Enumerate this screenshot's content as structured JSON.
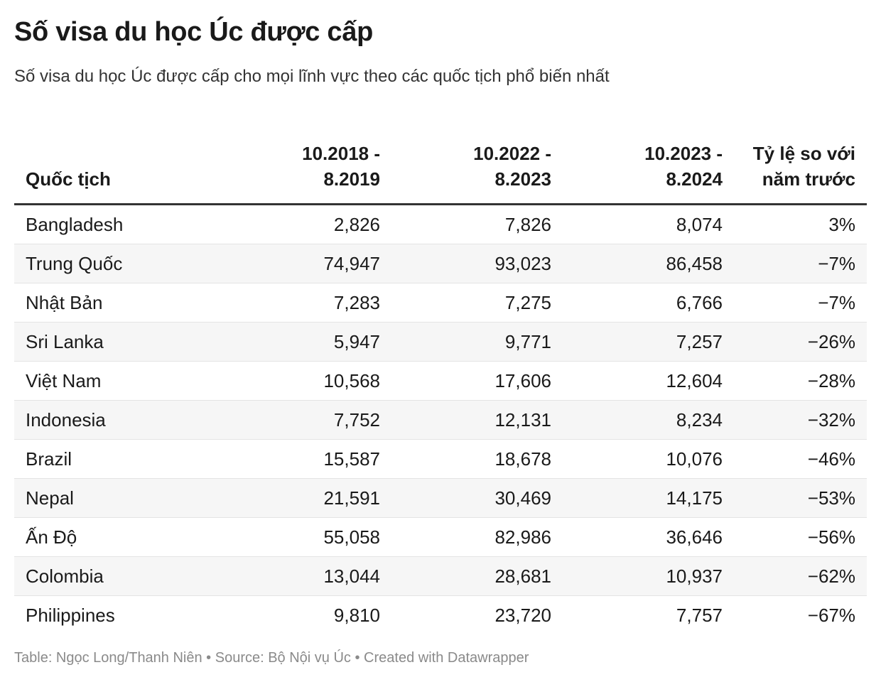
{
  "header": {
    "title": "Số visa du học Úc được cấp",
    "subtitle": "Số visa du học Úc được cấp cho mọi lĩnh vực theo các quốc tịch phổ biến nhất"
  },
  "footer": {
    "text": "Table: Ngọc Long/Thanh Niên • Source: Bộ Nội vụ Úc • Created with Datawrapper"
  },
  "colors": {
    "header_rule": "#333333",
    "row_stripe": "#f6f6f6",
    "row_divider": "#e4e4e4",
    "footer_text": "#8a8a8a"
  },
  "chart_data": {
    "type": "table",
    "title": "Số visa du học Úc được cấp",
    "subtitle": "Số visa du học Úc được cấp cho mọi lĩnh vực theo các quốc tịch phổ biến nhất",
    "columns": [
      {
        "label_lines": [
          "",
          "Quốc tịch"
        ],
        "align": "left"
      },
      {
        "label_lines": [
          "10.2018 -",
          "8.2019"
        ],
        "align": "right"
      },
      {
        "label_lines": [
          "10.2022 -",
          "8.2023"
        ],
        "align": "right"
      },
      {
        "label_lines": [
          "10.2023 -",
          "8.2024"
        ],
        "align": "right"
      },
      {
        "label_lines": [
          "Tỷ lệ so với",
          "năm trước"
        ],
        "align": "right"
      }
    ],
    "rows": [
      {
        "country": "Bangladesh",
        "v2019": "2,826",
        "v2023": "7,826",
        "v2024": "8,074",
        "change": "3%"
      },
      {
        "country": "Trung Quốc",
        "v2019": "74,947",
        "v2023": "93,023",
        "v2024": "86,458",
        "change": "−7%"
      },
      {
        "country": "Nhật Bản",
        "v2019": "7,283",
        "v2023": "7,275",
        "v2024": "6,766",
        "change": "−7%"
      },
      {
        "country": "Sri Lanka",
        "v2019": "5,947",
        "v2023": "9,771",
        "v2024": "7,257",
        "change": "−26%"
      },
      {
        "country": "Việt Nam",
        "v2019": "10,568",
        "v2023": "17,606",
        "v2024": "12,604",
        "change": "−28%"
      },
      {
        "country": "Indonesia",
        "v2019": "7,752",
        "v2023": "12,131",
        "v2024": "8,234",
        "change": "−32%"
      },
      {
        "country": "Brazil",
        "v2019": "15,587",
        "v2023": "18,678",
        "v2024": "10,076",
        "change": "−46%"
      },
      {
        "country": "Nepal",
        "v2019": "21,591",
        "v2023": "30,469",
        "v2024": "14,175",
        "change": "−53%"
      },
      {
        "country": "Ấn Độ",
        "v2019": "55,058",
        "v2023": "82,986",
        "v2024": "36,646",
        "change": "−56%"
      },
      {
        "country": "Colombia",
        "v2019": "13,044",
        "v2023": "28,681",
        "v2024": "10,937",
        "change": "−62%"
      },
      {
        "country": "Philippines",
        "v2019": "9,810",
        "v2023": "23,720",
        "v2024": "7,757",
        "change": "−67%"
      }
    ]
  }
}
